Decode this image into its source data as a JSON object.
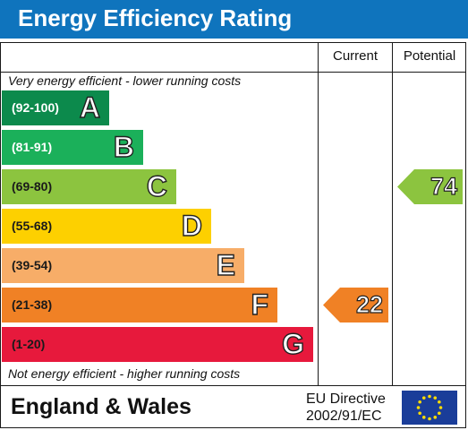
{
  "title": "Energy Efficiency Rating",
  "columns": {
    "current": "Current",
    "potential": "Potential"
  },
  "notes": {
    "top": "Very energy efficient - lower running costs",
    "bottom": "Not energy efficient - higher running costs"
  },
  "footer": {
    "region": "England & Wales",
    "directive_line1": "EU Directive",
    "directive_line2": "2002/91/EC",
    "flag_icon": "eu-flag-icon"
  },
  "chart_data": {
    "type": "table",
    "bands": [
      {
        "range": "(92-100)",
        "letter": "A",
        "color": "#0c8a4c"
      },
      {
        "range": "(81-91)",
        "letter": "B",
        "color": "#1bb05a"
      },
      {
        "range": "(69-80)",
        "letter": "C",
        "color": "#8cc43f"
      },
      {
        "range": "(55-68)",
        "letter": "D",
        "color": "#fdd000"
      },
      {
        "range": "(39-54)",
        "letter": "E",
        "color": "#f7ad68"
      },
      {
        "range": "(21-38)",
        "letter": "F",
        "color": "#f08125"
      },
      {
        "range": "(1-20)",
        "letter": "G",
        "color": "#e7193c"
      }
    ],
    "current": {
      "value": "22",
      "band": "F",
      "color": "#f08125"
    },
    "potential": {
      "value": "74",
      "band": "C",
      "color": "#8cc43f"
    }
  }
}
